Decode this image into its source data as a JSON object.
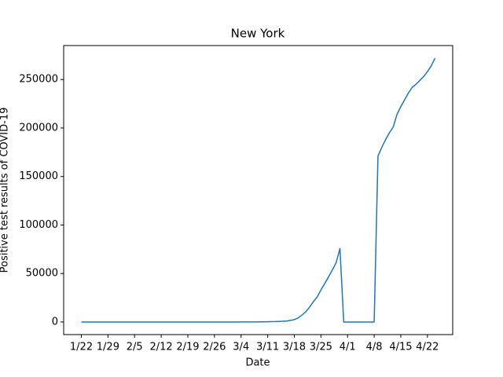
{
  "chart_data": {
    "type": "line",
    "title": "New York",
    "x_label": "Date",
    "y_label": "Positive test results of COVID-19",
    "categories": [
      "1/22",
      null,
      null,
      null,
      null,
      null,
      null,
      "1/29",
      null,
      null,
      null,
      null,
      null,
      null,
      "2/5",
      null,
      null,
      null,
      null,
      null,
      null,
      "2/12",
      null,
      null,
      null,
      null,
      null,
      null,
      "2/19",
      null,
      null,
      null,
      null,
      null,
      null,
      "2/26",
      null,
      null,
      null,
      null,
      null,
      null,
      "3/4",
      null,
      null,
      null,
      null,
      null,
      null,
      "3/11",
      null,
      null,
      null,
      null,
      null,
      null,
      "3/18",
      null,
      null,
      null,
      null,
      null,
      null,
      "3/25",
      null,
      null,
      null,
      null,
      null,
      null,
      "4/1",
      null,
      null,
      null,
      null,
      null,
      null,
      "4/8",
      null,
      null,
      null,
      null,
      null,
      null,
      "4/15",
      null,
      null,
      null,
      null,
      null,
      null,
      "4/22",
      null,
      null
    ],
    "values": [
      0,
      0,
      0,
      0,
      0,
      0,
      0,
      0,
      0,
      0,
      0,
      0,
      0,
      0,
      0,
      0,
      0,
      0,
      0,
      0,
      0,
      0,
      0,
      0,
      0,
      0,
      0,
      0,
      0,
      0,
      0,
      0,
      0,
      0,
      0,
      0,
      0,
      0,
      0,
      1,
      1,
      2,
      11,
      22,
      44,
      89,
      106,
      142,
      173,
      220,
      330,
      420,
      610,
      730,
      950,
      1700,
      2400,
      4200,
      7100,
      10400,
      15200,
      20900,
      25700,
      33000,
      39500,
      46500,
      53500,
      61000,
      75800,
      0,
      0,
      0,
      0,
      0,
      0,
      0,
      0,
      0,
      171000,
      180000,
      188000,
      195000,
      201000,
      214000,
      222000,
      229000,
      236000,
      242000,
      245000,
      249000,
      253000,
      258000,
      264000,
      272000
    ],
    "color": "#1f77b4",
    "ylim": [
      -13000,
      285000
    ],
    "yticks": [
      0,
      50000,
      100000,
      150000,
      200000,
      250000
    ]
  }
}
